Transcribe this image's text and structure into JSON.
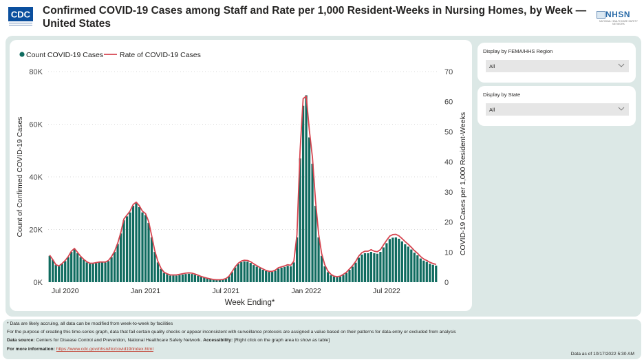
{
  "header": {
    "title": "Confirmed COVID-19 Cases among Staff and Rate per 1,000 Resident-Weeks in Nursing Homes, by Week — United States",
    "logo_left": "CDC",
    "logo_right": "NHSN",
    "logo_right_sub": "NATIONAL HEALTHCARE SAFETY NETWORK"
  },
  "filters": [
    {
      "label": "Display by FEMA/HHS Region",
      "value": "All"
    },
    {
      "label": "Display by State",
      "value": "All"
    }
  ],
  "footer": {
    "note1": "* Data are likely accruing, all data can be modified from week-to-week by facilities",
    "note2": "For the purpose of creating this time-series graph, data that fail certain quality checks or appear inconsistent with surveillance protocols are assigned a value based on their patterns for data-entry or excluded from analysis",
    "source_label": "Data source:",
    "source_text": "Centers for Disease Control and Prevention, National Healthcare Safety Network.",
    "access_label": "Accessibility:",
    "access_text": "[Right click on the graph area to show as table]",
    "info_label": "For more information:",
    "info_link": "https://www.cdc.gov/nhsn/ltc/covid19/index.html",
    "as_of": "Data as of 10/17/2022 5:30 AM"
  },
  "colors": {
    "bar": "#0f6b5f",
    "line": "#d64550",
    "panel": "#dce8e6"
  },
  "chart_data": {
    "type": "bar",
    "title": "",
    "legend": [
      {
        "name": "Count COVID-19 Cases",
        "type": "bar"
      },
      {
        "name": "Rate of COVID-19 Cases",
        "type": "line"
      }
    ],
    "legend_position": "top-left",
    "xlabel": "Week Ending*",
    "ylabel": "Count of Confirmed COVID-19 Cases",
    "y2label": "COVID-19 Cases per 1,000 Resident-Weeks",
    "ylim": [
      0,
      80000
    ],
    "y2lim": [
      0,
      70
    ],
    "yticks": [
      "0K",
      "20K",
      "40K",
      "60K",
      "80K"
    ],
    "y2ticks": [
      "0",
      "10",
      "20",
      "30",
      "40",
      "50",
      "60",
      "70"
    ],
    "xticks": [
      {
        "label": "Jul 2020",
        "index": 5
      },
      {
        "label": "Jan 2021",
        "index": 31
      },
      {
        "label": "Jul 2021",
        "index": 57
      },
      {
        "label": "Jan 2022",
        "index": 83
      },
      {
        "label": "Jul 2022",
        "index": 109
      }
    ],
    "grid": true,
    "series": [
      {
        "name": "Count COVID-19 Cases",
        "values": [
          10000,
          8500,
          6500,
          6000,
          7000,
          8000,
          9500,
          11500,
          12500,
          11000,
          9500,
          8500,
          7500,
          7000,
          7000,
          7200,
          7500,
          7500,
          7500,
          8000,
          9500,
          11500,
          14500,
          18500,
          23500,
          25000,
          26500,
          29000,
          30000,
          28500,
          26500,
          25500,
          22500,
          17000,
          11500,
          7500,
          5000,
          3500,
          3000,
          2500,
          2500,
          2500,
          2700,
          2900,
          3100,
          3200,
          3100,
          2800,
          2400,
          2000,
          1700,
          1400,
          1200,
          1000,
          900,
          900,
          1000,
          1300,
          2200,
          3800,
          5600,
          6900,
          7600,
          7900,
          7800,
          7300,
          6500,
          5900,
          5300,
          4700,
          4200,
          3900,
          3900,
          4300,
          5100,
          5500,
          5800,
          6200,
          6000,
          7500,
          17000,
          47000,
          67000,
          71000,
          55000,
          45000,
          29000,
          17000,
          10000,
          6000,
          3800,
          2600,
          2100,
          1900,
          2100,
          2700,
          3500,
          4700,
          5900,
          7400,
          9300,
          10500,
          11000,
          11000,
          11500,
          11000,
          10800,
          11500,
          13200,
          14800,
          16400,
          16900,
          17000,
          16500,
          15500,
          14400,
          13500,
          12400,
          11200,
          10200,
          9000,
          8200,
          7700,
          7000,
          6600,
          6300
        ],
        "color": "#0f6b5f"
      },
      {
        "name": "Rate of COVID-19 Cases",
        "values": [
          9.0,
          7.5,
          5.8,
          5.4,
          6.2,
          7.2,
          8.5,
          10.3,
          11.2,
          9.9,
          8.6,
          7.6,
          6.8,
          6.3,
          6.3,
          6.5,
          6.7,
          6.7,
          6.7,
          7.2,
          8.5,
          10.3,
          13.0,
          16.5,
          21.0,
          22.3,
          23.6,
          25.8,
          26.6,
          25.4,
          23.6,
          22.8,
          20.2,
          15.4,
          10.4,
          6.9,
          4.6,
          3.3,
          2.8,
          2.4,
          2.4,
          2.4,
          2.6,
          2.8,
          3.0,
          3.1,
          3.0,
          2.7,
          2.3,
          1.9,
          1.6,
          1.3,
          1.1,
          0.9,
          0.8,
          0.8,
          0.9,
          1.2,
          2.0,
          3.5,
          5.1,
          6.3,
          7.0,
          7.3,
          7.2,
          6.8,
          6.1,
          5.5,
          4.9,
          4.4,
          3.9,
          3.6,
          3.6,
          4.0,
          4.8,
          5.1,
          5.4,
          5.8,
          5.6,
          7.0,
          15.8,
          43.5,
          61.0,
          61.8,
          50.5,
          41.5,
          27.0,
          16.0,
          9.5,
          5.8,
          3.7,
          2.6,
          2.0,
          1.8,
          2.0,
          2.6,
          3.3,
          4.4,
          5.5,
          6.9,
          8.7,
          9.8,
          10.3,
          10.3,
          10.8,
          10.3,
          10.1,
          10.8,
          12.4,
          13.9,
          15.3,
          15.8,
          15.9,
          15.4,
          14.5,
          13.5,
          12.6,
          11.6,
          10.5,
          9.6,
          8.5,
          7.7,
          7.2,
          6.6,
          6.2,
          5.9
        ],
        "color": "#d64550"
      }
    ]
  }
}
